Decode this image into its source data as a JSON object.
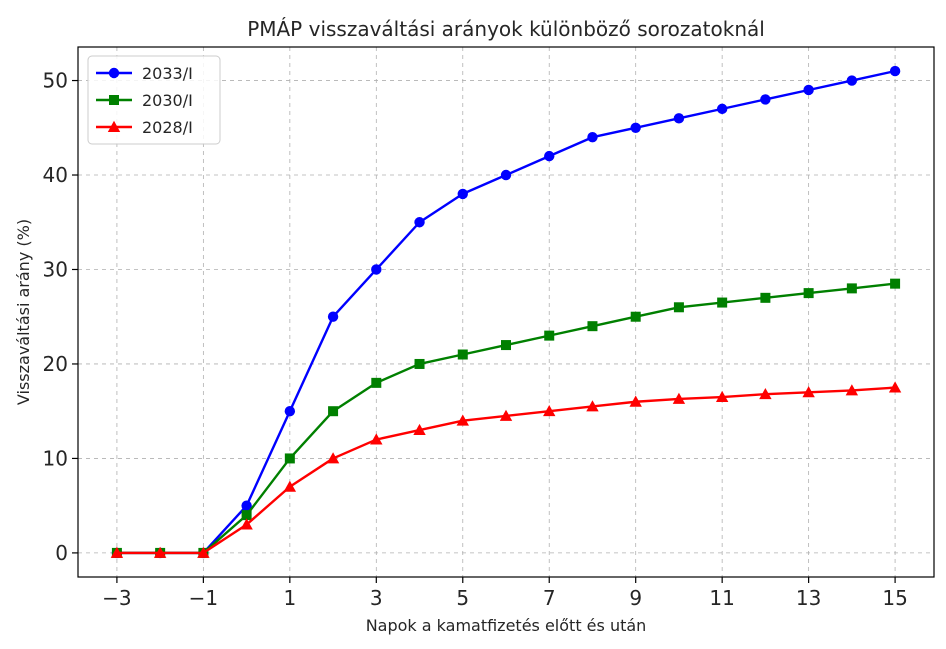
{
  "chart_data": {
    "type": "line",
    "title": "PMÁP visszaváltási arányok különböző sorozatoknál",
    "xlabel": "Napok a kamatfizetés előtt és után",
    "ylabel": "Visszaváltási arány (%)",
    "x": [
      -3,
      -2,
      -1,
      0,
      1,
      2,
      3,
      4,
      5,
      6,
      7,
      8,
      9,
      10,
      11,
      12,
      13,
      14,
      15
    ],
    "xticks": [
      -3,
      -1,
      1,
      3,
      5,
      7,
      9,
      11,
      13,
      15
    ],
    "xtick_labels": [
      "−3",
      "−1",
      "1",
      "3",
      "5",
      "7",
      "9",
      "11",
      "13",
      "15"
    ],
    "yticks": [
      0,
      10,
      20,
      30,
      40,
      50
    ],
    "ytick_labels": [
      "0",
      "10",
      "20",
      "30",
      "40",
      "50"
    ],
    "xlim": [
      -3.9,
      15.9
    ],
    "ylim": [
      -2.55,
      53.55
    ],
    "grid": true,
    "legend_position": "top-left",
    "series": [
      {
        "name": "2033/I",
        "color": "#0000ff",
        "marker": "circle",
        "values": [
          0,
          0,
          0,
          5,
          15,
          25,
          30,
          35,
          38,
          40,
          42,
          44,
          45,
          46,
          47,
          48,
          49,
          50,
          51
        ]
      },
      {
        "name": "2030/I",
        "color": "#008000",
        "marker": "square",
        "values": [
          0,
          0,
          0,
          4,
          10,
          15,
          18,
          20,
          21,
          22,
          23,
          24,
          25,
          26,
          26.5,
          27,
          27.5,
          28,
          28.5
        ]
      },
      {
        "name": "2028/I",
        "color": "#ff0000",
        "marker": "triangle",
        "values": [
          0,
          0,
          0,
          3,
          7,
          10,
          12,
          13,
          14,
          14.5,
          15,
          15.5,
          16,
          16.3,
          16.5,
          16.8,
          17,
          17.2,
          17.5
        ]
      }
    ]
  }
}
